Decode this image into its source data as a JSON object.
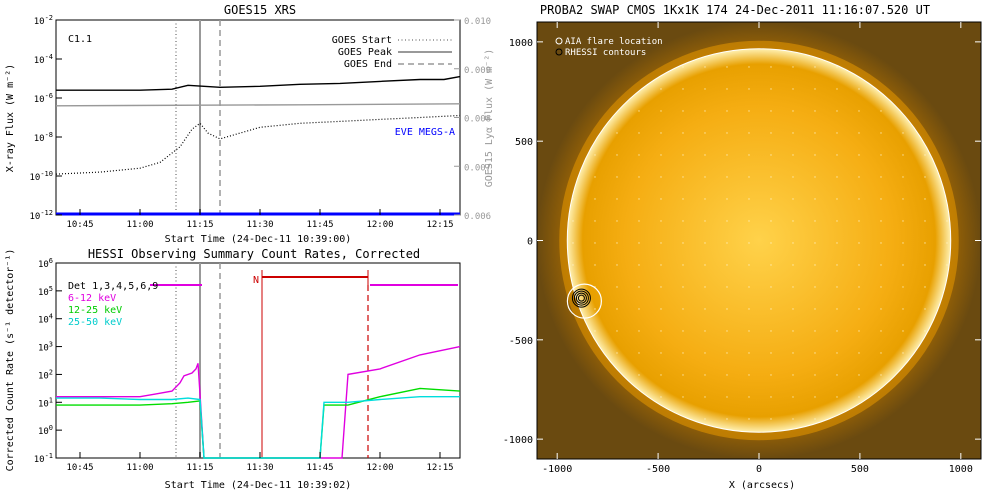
{
  "chart_data": [
    {
      "id": "goes",
      "type": "line",
      "title": "GOES15 XRS",
      "xlabel": "Start Time (24-Dec-11 10:39:00)",
      "ylabel": "X-ray Flux (W m⁻²)",
      "y2label": "GOES15 Lyα Flux (W m⁻²)",
      "x_ticks": [
        "10:45",
        "11:00",
        "11:15",
        "11:30",
        "11:45",
        "12:00",
        "12:15"
      ],
      "xlim_minutes": [
        639,
        740
      ],
      "y_log": true,
      "ylim_exp": [
        -12,
        -2
      ],
      "y_tick_exps": [
        -12,
        -10,
        -8,
        -6,
        -4,
        -2
      ],
      "y2lim": [
        0.006,
        0.01
      ],
      "y2_ticks": [
        "0.006",
        "0.007",
        "0.008",
        "0.009",
        "0.010"
      ],
      "flare_class": "C1.1",
      "legend": [
        "GOES Start",
        "GOES Peak",
        "GOES End"
      ],
      "annotation": "EVE MEGS-A",
      "markers_minutes": {
        "start": 669,
        "peak": 675,
        "end": 680
      },
      "series": [
        {
          "name": "",
          "color": "#000000",
          "x": [
            639,
            650,
            660,
            668,
            672,
            676,
            680,
            690,
            700,
            710,
            720,
            730,
            736,
            740
          ],
          "y_exp": [
            -5.6,
            -5.6,
            -5.6,
            -5.55,
            -5.35,
            -5.4,
            -5.45,
            -5.4,
            -5.3,
            -5.25,
            -5.15,
            -5.05,
            -5.05,
            -4.9
          ]
        },
        {
          "name": "",
          "color": "#999999",
          "x": [
            639,
            700,
            740
          ],
          "y_exp": [
            -6.4,
            -6.35,
            -6.3
          ]
        },
        {
          "name": "",
          "color": "#000000",
          "dotted": true,
          "x": [
            639,
            650,
            660,
            665,
            670,
            673,
            675,
            677,
            680,
            690,
            700,
            710,
            720,
            730,
            740
          ],
          "y_exp": [
            -9.9,
            -9.8,
            -9.6,
            -9.3,
            -8.5,
            -7.6,
            -7.3,
            -7.8,
            -8.1,
            -7.5,
            -7.3,
            -7.2,
            -7.1,
            -7.0,
            -6.9
          ]
        },
        {
          "name": "EVE MEGS-A",
          "color": "#0000ff",
          "x": [
            639,
            740
          ],
          "y_exp": [
            -11.95,
            -11.95
          ]
        }
      ]
    },
    {
      "id": "hessi",
      "type": "line",
      "title": "HESSI Observing Summary Count Rates, Corrected",
      "xlabel": "Start Time (24-Dec-11 10:39:02)",
      "ylabel": "Corrected Count Rate (s⁻¹ detector⁻¹)",
      "x_ticks": [
        "10:45",
        "11:00",
        "11:15",
        "11:30",
        "11:45",
        "12:00",
        "12:15"
      ],
      "xlim_minutes": [
        639,
        740
      ],
      "y_log": true,
      "ylim_exp": [
        -1,
        6
      ],
      "y_tick_exps": [
        -1,
        0,
        1,
        2,
        3,
        4,
        5,
        6
      ],
      "legend": [
        {
          "label": "Det 1,3,4,5,6,9",
          "color": "#000000"
        },
        {
          "label": "6-12 keV",
          "color": "#e000e0"
        },
        {
          "label": "12-25 keV",
          "color": "#00dd00"
        },
        {
          "label": "25-50 keV",
          "color": "#00dddd"
        }
      ],
      "night_label": "N",
      "markers_minutes": {
        "start": 669,
        "peak": 675,
        "end": 680
      },
      "series": [
        {
          "name": "6-12 keV",
          "color": "#e000e0",
          "x": [
            639,
            650,
            660,
            664,
            668,
            670,
            671,
            673,
            674,
            674.5,
            675,
            676,
            710.5,
            712,
            720,
            730,
            740
          ],
          "y_exp": [
            1.2,
            1.2,
            1.2,
            1.3,
            1.4,
            1.7,
            1.95,
            2.05,
            2.2,
            2.4,
            1.3,
            -1,
            -1,
            2.0,
            2.2,
            2.7,
            3.0
          ]
        },
        {
          "name": "12-25 keV",
          "color": "#00dd00",
          "x": [
            639,
            650,
            660,
            668,
            672,
            675,
            676,
            705,
            706,
            712,
            720,
            730,
            740
          ],
          "y_exp": [
            0.9,
            0.9,
            0.9,
            0.95,
            1.0,
            1.05,
            -1,
            -1,
            0.9,
            0.9,
            1.2,
            1.5,
            1.4
          ]
        },
        {
          "name": "25-50 keV",
          "color": "#00dddd",
          "x": [
            639,
            650,
            660,
            668,
            672,
            675,
            676,
            705,
            706,
            712,
            720,
            730,
            740
          ],
          "y_exp": [
            1.15,
            1.15,
            1.1,
            1.1,
            1.15,
            1.1,
            -1,
            -1,
            1.0,
            1.0,
            1.1,
            1.2,
            1.2
          ]
        }
      ]
    },
    {
      "id": "swap",
      "type": "image",
      "title": "PROBA2 SWAP CMOS 1Kx1K 174 24-Dec-2011 11:16:07.520 UT",
      "xlabel": "X (arcsecs)",
      "ylabel": "",
      "xlim": [
        -1100,
        1100
      ],
      "ylim": [
        -1100,
        1100
      ],
      "x_ticks": [
        "-1000",
        "-500",
        "0",
        "500",
        "1000"
      ],
      "y_ticks": [
        "-1000",
        "-500",
        "0",
        "500",
        "1000"
      ],
      "legend": [
        "AIA flare location",
        "RHESSI contours"
      ],
      "solar_radius_arcsec": 950,
      "flare_location_arcsec": [
        -880,
        -290
      ]
    }
  ]
}
